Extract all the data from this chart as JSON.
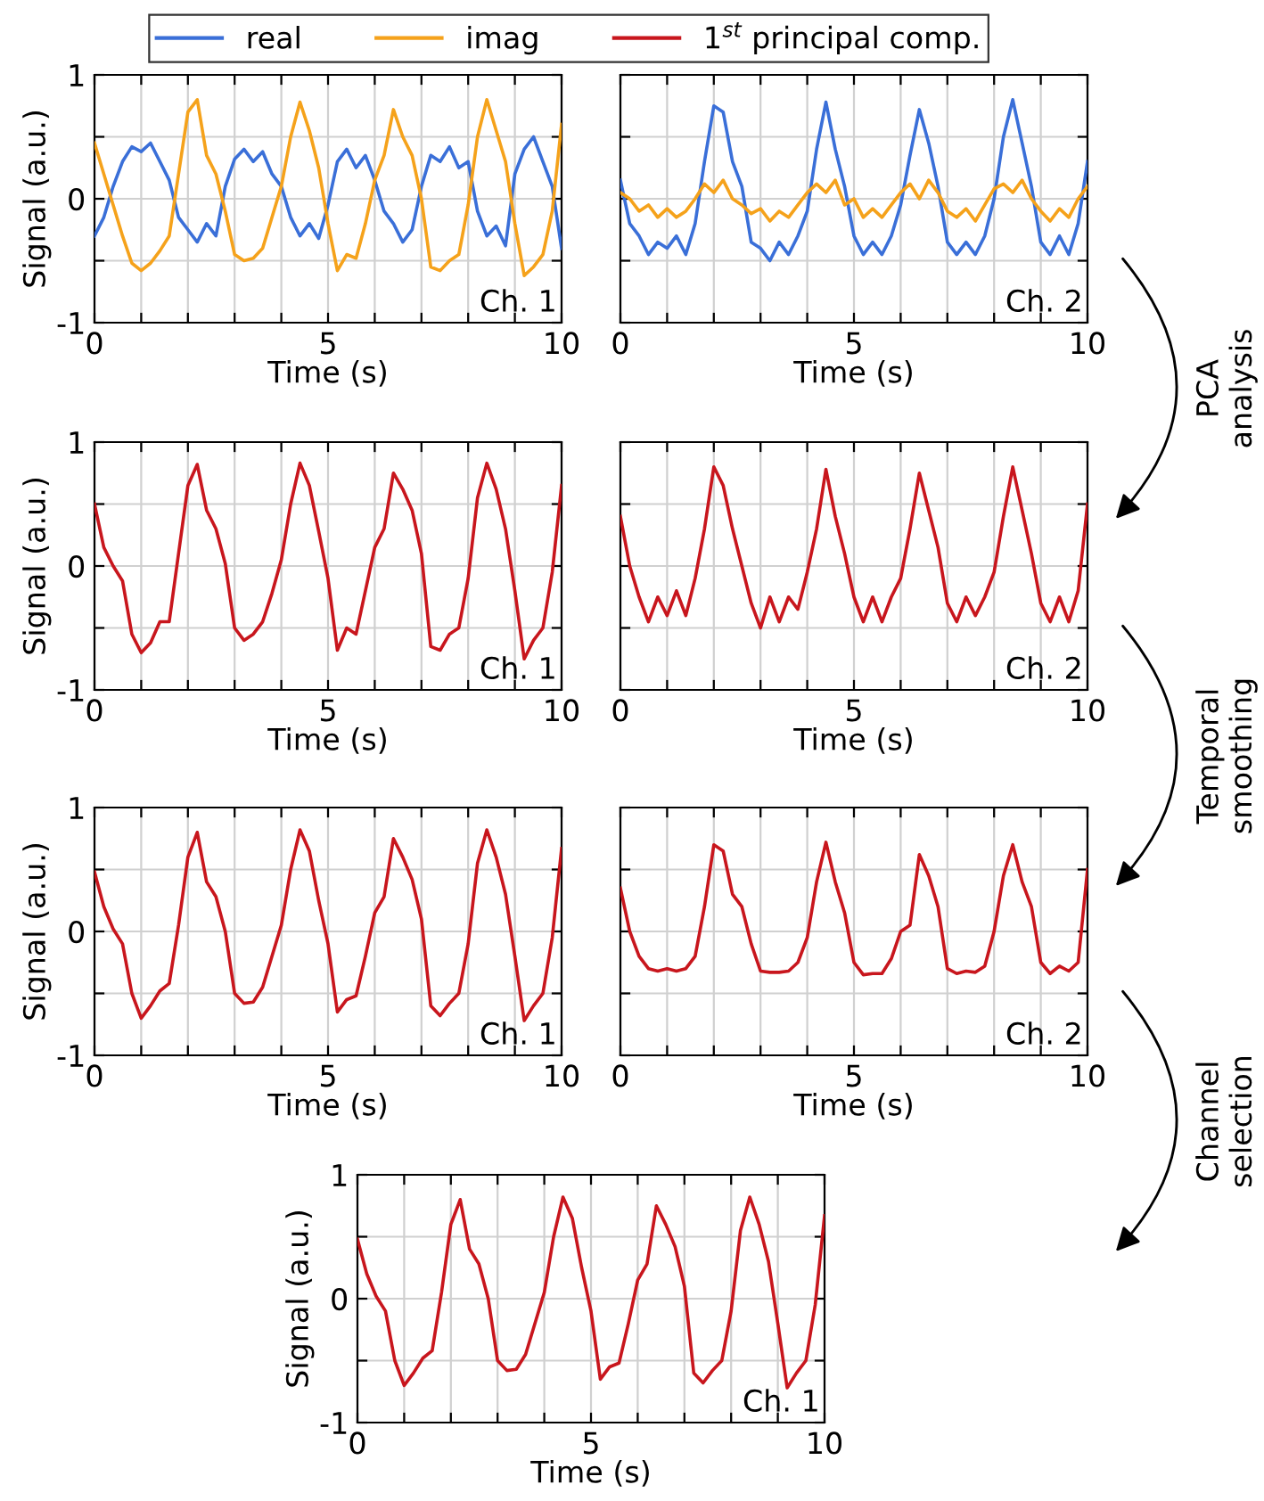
{
  "chart_data": [
    {
      "type": "line",
      "xlabel": "Time (s)",
      "ylabel": "Signal (a.u.)",
      "legend": "top",
      "grid": true,
      "xlim": [
        0,
        10
      ],
      "ylim": [
        -1,
        1
      ],
      "xticks": [
        0,
        {
          "value": 1,
          "label": null
        },
        {
          "value": 2,
          "label": null
        },
        {
          "value": 3,
          "label": null
        },
        {
          "value": 4,
          "label": null
        },
        5,
        {
          "value": 6,
          "label": null
        },
        {
          "value": 7,
          "label": null
        },
        {
          "value": 8,
          "label": null
        },
        {
          "value": 9,
          "label": null
        },
        10
      ],
      "yticks": [
        {
          "value": -1,
          "label": "-1"
        },
        {
          "value": -0.5,
          "label": null
        },
        0,
        {
          "value": 0.5,
          "label": null
        },
        1
      ],
      "annotations": [
        "Ch. 1"
      ],
      "x": [
        0,
        0.2,
        0.4,
        0.6,
        0.8,
        1,
        1.2,
        1.4,
        1.6,
        1.8,
        2,
        2.2,
        2.4,
        2.6,
        2.8,
        3,
        3.2,
        3.4,
        3.6,
        3.8,
        4,
        4.2,
        4.4,
        4.6,
        4.8,
        5,
        5.2,
        5.4,
        5.6,
        5.8,
        6,
        6.2,
        6.4,
        6.6,
        6.8,
        7,
        7.2,
        7.4,
        7.6,
        7.8,
        8,
        8.2,
        8.4,
        8.6,
        8.8,
        9,
        9.2,
        9.4,
        9.6,
        9.8,
        10
      ],
      "series": [
        {
          "name": "real",
          "color": "#3a6fd8",
          "values": [
            -0.3,
            -0.15,
            0.1,
            0.3,
            0.42,
            0.38,
            0.45,
            0.3,
            0.15,
            -0.15,
            -0.25,
            -0.35,
            -0.2,
            -0.3,
            0.1,
            0.32,
            0.4,
            0.3,
            0.38,
            0.2,
            0.1,
            -0.15,
            -0.3,
            -0.2,
            -0.32,
            -0.05,
            0.3,
            0.4,
            0.25,
            0.35,
            0.15,
            -0.1,
            -0.2,
            -0.35,
            -0.25,
            0.1,
            0.35,
            0.3,
            0.42,
            0.25,
            0.3,
            -0.1,
            -0.3,
            -0.22,
            -0.38,
            0.2,
            0.4,
            0.5,
            0.3,
            0.1,
            -0.4
          ]
        },
        {
          "name": "imag",
          "color": "#f5a21b",
          "values": [
            0.45,
            0.2,
            -0.05,
            -0.3,
            -0.52,
            -0.58,
            -0.52,
            -0.42,
            -0.3,
            0.2,
            0.7,
            0.8,
            0.35,
            0.2,
            -0.1,
            -0.45,
            -0.5,
            -0.48,
            -0.4,
            -0.15,
            0.1,
            0.5,
            0.78,
            0.55,
            0.25,
            -0.2,
            -0.58,
            -0.45,
            -0.48,
            -0.2,
            0.15,
            0.35,
            0.72,
            0.5,
            0.35,
            0.0,
            -0.55,
            -0.58,
            -0.5,
            -0.45,
            -0.05,
            0.5,
            0.8,
            0.55,
            0.3,
            -0.2,
            -0.62,
            -0.55,
            -0.45,
            -0.1,
            0.6
          ]
        }
      ]
    },
    {
      "type": "line",
      "xlabel": "Time (s)",
      "grid": true,
      "tick_labels": "x",
      "xlim": [
        0,
        10
      ],
      "ylim": [
        -1,
        1
      ],
      "xticks": [
        0,
        {
          "value": 1,
          "label": null
        },
        {
          "value": 2,
          "label": null
        },
        {
          "value": 3,
          "label": null
        },
        {
          "value": 4,
          "label": null
        },
        5,
        {
          "value": 6,
          "label": null
        },
        {
          "value": 7,
          "label": null
        },
        {
          "value": 8,
          "label": null
        },
        {
          "value": 9,
          "label": null
        },
        10
      ],
      "yticks": [
        {
          "value": -1,
          "label": "-1"
        },
        {
          "value": -0.5,
          "label": null
        },
        0,
        {
          "value": 0.5,
          "label": null
        },
        1
      ],
      "annotations": [
        "Ch. 2",
        "PCA analysis"
      ],
      "x": [
        0,
        0.2,
        0.4,
        0.6,
        0.8,
        1,
        1.2,
        1.4,
        1.6,
        1.8,
        2,
        2.2,
        2.4,
        2.6,
        2.8,
        3,
        3.2,
        3.4,
        3.6,
        3.8,
        4,
        4.2,
        4.4,
        4.6,
        4.8,
        5,
        5.2,
        5.4,
        5.6,
        5.8,
        6,
        6.2,
        6.4,
        6.6,
        6.8,
        7,
        7.2,
        7.4,
        7.6,
        7.8,
        8,
        8.2,
        8.4,
        8.6,
        8.8,
        9,
        9.2,
        9.4,
        9.6,
        9.8,
        10
      ],
      "series": [
        {
          "name": "real",
          "color": "#3a6fd8",
          "values": [
            0.15,
            -0.2,
            -0.3,
            -0.45,
            -0.35,
            -0.4,
            -0.3,
            -0.45,
            -0.2,
            0.3,
            0.75,
            0.7,
            0.3,
            0.1,
            -0.35,
            -0.4,
            -0.5,
            -0.35,
            -0.45,
            -0.3,
            -0.1,
            0.4,
            0.78,
            0.4,
            0.1,
            -0.3,
            -0.45,
            -0.35,
            -0.45,
            -0.3,
            -0.05,
            0.35,
            0.72,
            0.45,
            0.1,
            -0.35,
            -0.45,
            -0.35,
            -0.45,
            -0.3,
            0.0,
            0.5,
            0.8,
            0.45,
            0.1,
            -0.35,
            -0.45,
            -0.3,
            -0.45,
            -0.2,
            0.3
          ]
        },
        {
          "name": "imag",
          "color": "#f5a21b",
          "values": [
            0.05,
            0.0,
            -0.1,
            -0.05,
            -0.15,
            -0.08,
            -0.15,
            -0.1,
            0.0,
            0.12,
            0.05,
            0.15,
            0.0,
            -0.05,
            -0.12,
            -0.08,
            -0.18,
            -0.1,
            -0.15,
            -0.05,
            0.05,
            0.12,
            0.05,
            0.15,
            -0.05,
            0.0,
            -0.15,
            -0.08,
            -0.15,
            -0.05,
            0.05,
            0.12,
            0.0,
            0.15,
            0.05,
            -0.1,
            -0.15,
            -0.08,
            -0.18,
            -0.05,
            0.08,
            0.12,
            0.05,
            0.15,
            0.0,
            -0.1,
            -0.18,
            -0.08,
            -0.15,
            0.0,
            0.1
          ]
        }
      ]
    },
    {
      "type": "line",
      "xlabel": "Time (s)",
      "ylabel": "Signal (a.u.)",
      "grid": true,
      "xlim": [
        0,
        10
      ],
      "ylim": [
        -1,
        1
      ],
      "xticks": [
        0,
        {
          "value": 1,
          "label": null
        },
        {
          "value": 2,
          "label": null
        },
        {
          "value": 3,
          "label": null
        },
        {
          "value": 4,
          "label": null
        },
        5,
        {
          "value": 6,
          "label": null
        },
        {
          "value": 7,
          "label": null
        },
        {
          "value": 8,
          "label": null
        },
        {
          "value": 9,
          "label": null
        },
        10
      ],
      "yticks": [
        {
          "value": -1,
          "label": "-1"
        },
        {
          "value": -0.5,
          "label": null
        },
        0,
        {
          "value": 0.5,
          "label": null
        },
        1
      ],
      "annotations": [
        "Ch. 1"
      ],
      "x": [
        0,
        0.2,
        0.4,
        0.6,
        0.8,
        1,
        1.2,
        1.4,
        1.6,
        1.8,
        2,
        2.2,
        2.4,
        2.6,
        2.8,
        3,
        3.2,
        3.4,
        3.6,
        3.8,
        4,
        4.2,
        4.4,
        4.6,
        4.8,
        5,
        5.2,
        5.4,
        5.6,
        5.8,
        6,
        6.2,
        6.4,
        6.6,
        6.8,
        7,
        7.2,
        7.4,
        7.6,
        7.8,
        8,
        8.2,
        8.4,
        8.6,
        8.8,
        9,
        9.2,
        9.4,
        9.6,
        9.8,
        10
      ],
      "series": [
        {
          "name": "1$^{st}$ principal comp.",
          "color": "#c8161d",
          "values": [
            0.5,
            0.15,
            0.0,
            -0.12,
            -0.55,
            -0.7,
            -0.62,
            -0.45,
            -0.45,
            0.1,
            0.65,
            0.82,
            0.45,
            0.3,
            0.02,
            -0.5,
            -0.6,
            -0.55,
            -0.45,
            -0.22,
            0.05,
            0.5,
            0.83,
            0.65,
            0.28,
            -0.1,
            -0.68,
            -0.5,
            -0.55,
            -0.2,
            0.15,
            0.3,
            0.75,
            0.62,
            0.45,
            0.1,
            -0.65,
            -0.68,
            -0.55,
            -0.5,
            -0.1,
            0.55,
            0.83,
            0.62,
            0.3,
            -0.2,
            -0.75,
            -0.6,
            -0.5,
            -0.05,
            0.65
          ]
        }
      ]
    },
    {
      "type": "line",
      "xlabel": "Time (s)",
      "grid": true,
      "tick_labels": "x",
      "xlim": [
        0,
        10
      ],
      "ylim": [
        -1,
        1
      ],
      "xticks": [
        0,
        {
          "value": 1,
          "label": null
        },
        {
          "value": 2,
          "label": null
        },
        {
          "value": 3,
          "label": null
        },
        {
          "value": 4,
          "label": null
        },
        5,
        {
          "value": 6,
          "label": null
        },
        {
          "value": 7,
          "label": null
        },
        {
          "value": 8,
          "label": null
        },
        {
          "value": 9,
          "label": null
        },
        10
      ],
      "yticks": [
        {
          "value": -1,
          "label": "-1"
        },
        {
          "value": -0.5,
          "label": null
        },
        0,
        {
          "value": 0.5,
          "label": null
        },
        1
      ],
      "annotations": [
        "Ch. 2",
        "Temporal smoothing"
      ],
      "x": [
        0,
        0.2,
        0.4,
        0.6,
        0.8,
        1,
        1.2,
        1.4,
        1.6,
        1.8,
        2,
        2.2,
        2.4,
        2.6,
        2.8,
        3,
        3.2,
        3.4,
        3.6,
        3.8,
        4,
        4.2,
        4.4,
        4.6,
        4.8,
        5,
        5.2,
        5.4,
        5.6,
        5.8,
        6,
        6.2,
        6.4,
        6.6,
        6.8,
        7,
        7.2,
        7.4,
        7.6,
        7.8,
        8,
        8.2,
        8.4,
        8.6,
        8.8,
        9,
        9.2,
        9.4,
        9.6,
        9.8,
        10
      ],
      "series": [
        {
          "name": "1$^{st}$ principal comp.",
          "color": "#c8161d",
          "values": [
            0.4,
            0.0,
            -0.25,
            -0.45,
            -0.25,
            -0.4,
            -0.2,
            -0.4,
            -0.1,
            0.3,
            0.8,
            0.65,
            0.3,
            0.0,
            -0.3,
            -0.5,
            -0.25,
            -0.45,
            -0.25,
            -0.35,
            -0.05,
            0.3,
            0.78,
            0.4,
            0.1,
            -0.25,
            -0.45,
            -0.25,
            -0.45,
            -0.25,
            -0.1,
            0.3,
            0.75,
            0.45,
            0.15,
            -0.3,
            -0.45,
            -0.25,
            -0.4,
            -0.25,
            -0.05,
            0.4,
            0.8,
            0.45,
            0.1,
            -0.3,
            -0.45,
            -0.25,
            -0.45,
            -0.2,
            0.5
          ]
        }
      ]
    },
    {
      "type": "line",
      "xlabel": "Time (s)",
      "ylabel": "Signal (a.u.)",
      "grid": true,
      "xlim": [
        0,
        10
      ],
      "ylim": [
        -1,
        1
      ],
      "xticks": [
        0,
        {
          "value": 1,
          "label": null
        },
        {
          "value": 2,
          "label": null
        },
        {
          "value": 3,
          "label": null
        },
        {
          "value": 4,
          "label": null
        },
        5,
        {
          "value": 6,
          "label": null
        },
        {
          "value": 7,
          "label": null
        },
        {
          "value": 8,
          "label": null
        },
        {
          "value": 9,
          "label": null
        },
        10
      ],
      "yticks": [
        {
          "value": -1,
          "label": "-1"
        },
        {
          "value": -0.5,
          "label": null
        },
        0,
        {
          "value": 0.5,
          "label": null
        },
        1
      ],
      "annotations": [
        "Ch. 1"
      ],
      "x": [
        0,
        0.2,
        0.4,
        0.6,
        0.8,
        1,
        1.2,
        1.4,
        1.6,
        1.8,
        2,
        2.2,
        2.4,
        2.6,
        2.8,
        3,
        3.2,
        3.4,
        3.6,
        3.8,
        4,
        4.2,
        4.4,
        4.6,
        4.8,
        5,
        5.2,
        5.4,
        5.6,
        5.8,
        6,
        6.2,
        6.4,
        6.6,
        6.8,
        7,
        7.2,
        7.4,
        7.6,
        7.8,
        8,
        8.2,
        8.4,
        8.6,
        8.8,
        9,
        9.2,
        9.4,
        9.6,
        9.8,
        10
      ],
      "series": [
        {
          "name": "1$^{st}$ principal comp.",
          "color": "#c8161d",
          "values": [
            0.48,
            0.2,
            0.02,
            -0.1,
            -0.5,
            -0.7,
            -0.6,
            -0.48,
            -0.42,
            0.05,
            0.6,
            0.8,
            0.4,
            0.28,
            0.0,
            -0.5,
            -0.58,
            -0.57,
            -0.45,
            -0.2,
            0.05,
            0.5,
            0.82,
            0.65,
            0.25,
            -0.1,
            -0.65,
            -0.55,
            -0.52,
            -0.2,
            0.15,
            0.28,
            0.75,
            0.6,
            0.42,
            0.1,
            -0.6,
            -0.68,
            -0.58,
            -0.5,
            -0.1,
            0.55,
            0.82,
            0.6,
            0.3,
            -0.2,
            -0.72,
            -0.6,
            -0.5,
            -0.05,
            0.67
          ]
        }
      ]
    },
    {
      "type": "line",
      "xlabel": "Time (s)",
      "grid": true,
      "tick_labels": "x",
      "xlim": [
        0,
        10
      ],
      "ylim": [
        -1,
        1
      ],
      "xticks": [
        0,
        {
          "value": 1,
          "label": null
        },
        {
          "value": 2,
          "label": null
        },
        {
          "value": 3,
          "label": null
        },
        {
          "value": 4,
          "label": null
        },
        5,
        {
          "value": 6,
          "label": null
        },
        {
          "value": 7,
          "label": null
        },
        {
          "value": 8,
          "label": null
        },
        {
          "value": 9,
          "label": null
        },
        10
      ],
      "yticks": [
        {
          "value": -1,
          "label": "-1"
        },
        {
          "value": -0.5,
          "label": null
        },
        0,
        {
          "value": 0.5,
          "label": null
        },
        1
      ],
      "annotations": [
        "Ch. 2",
        "Channel selection"
      ],
      "x": [
        0,
        0.2,
        0.4,
        0.6,
        0.8,
        1,
        1.2,
        1.4,
        1.6,
        1.8,
        2,
        2.2,
        2.4,
        2.6,
        2.8,
        3,
        3.2,
        3.4,
        3.6,
        3.8,
        4,
        4.2,
        4.4,
        4.6,
        4.8,
        5,
        5.2,
        5.4,
        5.6,
        5.8,
        6,
        6.2,
        6.4,
        6.6,
        6.8,
        7,
        7.2,
        7.4,
        7.6,
        7.8,
        8,
        8.2,
        8.4,
        8.6,
        8.8,
        9,
        9.2,
        9.4,
        9.6,
        9.8,
        10
      ],
      "series": [
        {
          "name": "1$^{st}$ principal comp.",
          "color": "#c8161d",
          "values": [
            0.35,
            0.0,
            -0.2,
            -0.3,
            -0.32,
            -0.3,
            -0.32,
            -0.3,
            -0.2,
            0.2,
            0.7,
            0.65,
            0.3,
            0.2,
            -0.1,
            -0.32,
            -0.33,
            -0.33,
            -0.32,
            -0.25,
            -0.05,
            0.4,
            0.72,
            0.4,
            0.15,
            -0.25,
            -0.35,
            -0.34,
            -0.34,
            -0.22,
            0.0,
            0.05,
            0.62,
            0.45,
            0.2,
            -0.3,
            -0.34,
            -0.32,
            -0.33,
            -0.28,
            0.0,
            0.45,
            0.7,
            0.4,
            0.2,
            -0.25,
            -0.34,
            -0.28,
            -0.32,
            -0.25,
            0.5
          ]
        }
      ]
    },
    {
      "type": "line",
      "xlabel": "Time (s)",
      "ylabel": "Signal (a.u.)",
      "grid": true,
      "xlim": [
        0,
        10
      ],
      "ylim": [
        -1,
        1
      ],
      "xticks": [
        0,
        {
          "value": 1,
          "label": null
        },
        {
          "value": 2,
          "label": null
        },
        {
          "value": 3,
          "label": null
        },
        {
          "value": 4,
          "label": null
        },
        5,
        {
          "value": 6,
          "label": null
        },
        {
          "value": 7,
          "label": null
        },
        {
          "value": 8,
          "label": null
        },
        {
          "value": 9,
          "label": null
        },
        10
      ],
      "yticks": [
        {
          "value": -1,
          "label": "-1"
        },
        {
          "value": -0.5,
          "label": null
        },
        0,
        {
          "value": 0.5,
          "label": null
        },
        1
      ],
      "annotations": [
        "Ch. 1"
      ],
      "x": [
        0,
        0.2,
        0.4,
        0.6,
        0.8,
        1,
        1.2,
        1.4,
        1.6,
        1.8,
        2,
        2.2,
        2.4,
        2.6,
        2.8,
        3,
        3.2,
        3.4,
        3.6,
        3.8,
        4,
        4.2,
        4.4,
        4.6,
        4.8,
        5,
        5.2,
        5.4,
        5.6,
        5.8,
        6,
        6.2,
        6.4,
        6.6,
        6.8,
        7,
        7.2,
        7.4,
        7.6,
        7.8,
        8,
        8.2,
        8.4,
        8.6,
        8.8,
        9,
        9.2,
        9.4,
        9.6,
        9.8,
        10
      ],
      "series": [
        {
          "name": "1$^{st}$ principal comp.",
          "color": "#c8161d",
          "values": [
            0.48,
            0.2,
            0.02,
            -0.1,
            -0.5,
            -0.7,
            -0.6,
            -0.48,
            -0.42,
            0.05,
            0.6,
            0.8,
            0.4,
            0.28,
            0.0,
            -0.5,
            -0.58,
            -0.57,
            -0.45,
            -0.2,
            0.05,
            0.5,
            0.82,
            0.65,
            0.25,
            -0.1,
            -0.65,
            -0.55,
            -0.52,
            -0.2,
            0.15,
            0.28,
            0.75,
            0.6,
            0.42,
            0.1,
            -0.6,
            -0.68,
            -0.58,
            -0.5,
            -0.1,
            0.55,
            0.82,
            0.6,
            0.3,
            -0.2,
            -0.72,
            -0.6,
            -0.5,
            -0.05,
            0.67
          ]
        }
      ]
    }
  ]
}
